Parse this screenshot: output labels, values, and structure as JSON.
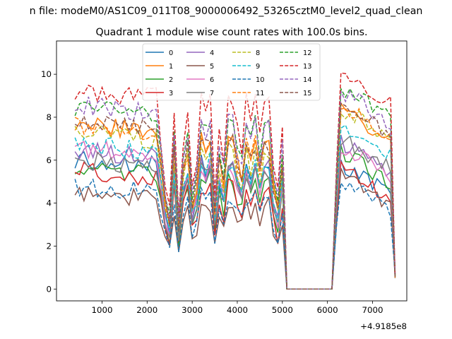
{
  "chart_data": {
    "type": "line",
    "suptitle": "n file: modeM0/AS1C09_011T08_9000006492_53265cztM0_level2_quad_clean",
    "title": "Quadrant 1 module wise count rates with 100.0s bins.",
    "xlabel": "",
    "ylabel": "",
    "x_offset_label": "+4.9185e8",
    "xlim": [
      -10,
      7760
    ],
    "ylim": [
      -0.55,
      11.55
    ],
    "x_ticks": [
      1000,
      2000,
      3000,
      4000,
      5000,
      6000,
      7000
    ],
    "y_ticks": [
      0,
      2,
      4,
      6,
      8,
      10
    ],
    "x_tick_labels": [
      "1000",
      "2000",
      "3000",
      "4000",
      "5000",
      "6000",
      "7000"
    ],
    "y_tick_labels": [
      "0",
      "2",
      "4",
      "6",
      "8",
      "10"
    ],
    "grid": false,
    "legend_position": "upper center",
    "gap_range": [
      5100,
      6100
    ],
    "series": [
      {
        "name": "0",
        "color": "#1f77b4",
        "dash": "solid",
        "seed": 1,
        "base": 6.0,
        "slope": -0.05,
        "resume": 6.0
      },
      {
        "name": "1",
        "color": "#ff7f0e",
        "dash": "solid",
        "seed": 2,
        "base": 7.7,
        "slope": -0.15,
        "resume": 8.6
      },
      {
        "name": "2",
        "color": "#2ca02c",
        "dash": "solid",
        "seed": 3,
        "base": 5.6,
        "slope": -0.1,
        "resume": 6.6
      },
      {
        "name": "3",
        "color": "#d62728",
        "dash": "solid",
        "seed": 4,
        "base": 5.6,
        "slope": -0.2,
        "resume": 5.8
      },
      {
        "name": "4",
        "color": "#9467bd",
        "dash": "solid",
        "seed": 5,
        "base": 6.5,
        "slope": -0.15,
        "resume": 7.0
      },
      {
        "name": "5",
        "color": "#8c564b",
        "dash": "solid",
        "seed": 6,
        "base": 4.4,
        "slope": -0.1,
        "resume": 5.4
      },
      {
        "name": "6",
        "color": "#e377c2",
        "dash": "solid",
        "seed": 7,
        "base": 6.6,
        "slope": -0.2,
        "resume": 6.9
      },
      {
        "name": "7",
        "color": "#7f7f7f",
        "dash": "solid",
        "seed": 8,
        "base": 6.0,
        "slope": -0.1,
        "resume": 7.2
      },
      {
        "name": "8",
        "color": "#bcbd22",
        "dash": "dashed",
        "seed": 9,
        "base": 7.4,
        "slope": -0.2,
        "resume": 8.6
      },
      {
        "name": "9",
        "color": "#17becf",
        "dash": "dashed",
        "seed": 10,
        "base": 6.8,
        "slope": -0.2,
        "resume": 7.9
      },
      {
        "name": "10",
        "color": "#1f77b4",
        "dash": "dashed",
        "seed": 11,
        "base": 4.8,
        "slope": -0.1,
        "resume": 5.3
      },
      {
        "name": "11",
        "color": "#ff7f0e",
        "dash": "dashed",
        "seed": 12,
        "base": 7.6,
        "slope": -0.15,
        "resume": 8.7
      },
      {
        "name": "12",
        "color": "#2ca02c",
        "dash": "dashed",
        "seed": 13,
        "base": 8.5,
        "slope": -0.15,
        "resume": 9.6
      },
      {
        "name": "13",
        "color": "#d62728",
        "dash": "dashed",
        "seed": 14,
        "base": 9.2,
        "slope": -0.1,
        "resume": 10.3
      },
      {
        "name": "14",
        "color": "#9467bd",
        "dash": "dashed",
        "seed": 15,
        "base": 8.6,
        "slope": -0.2,
        "resume": 9.4
      },
      {
        "name": "15",
        "color": "#8c564b",
        "dash": "dashed",
        "seed": 16,
        "base": 7.9,
        "slope": -0.2,
        "resume": 8.8
      }
    ]
  }
}
